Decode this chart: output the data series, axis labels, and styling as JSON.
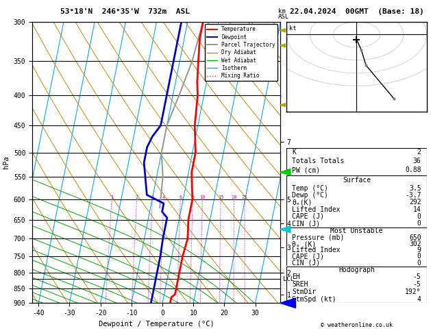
{
  "title_left": "53°18'N  246°35'W  732m  ASL",
  "title_right": "22.04.2024  00GMT  (Base: 18)",
  "xlabel": "Dewpoint / Temperature (°C)",
  "xlim": [
    -42,
    38
  ],
  "pressure_levels": [
    300,
    350,
    400,
    450,
    500,
    550,
    600,
    650,
    700,
    750,
    800,
    850,
    900
  ],
  "temp_profile": {
    "T": [
      -5,
      -5,
      -4,
      -3,
      -2,
      -1,
      1,
      1,
      2,
      3,
      3,
      4,
      3.5,
      3.5,
      3.5,
      3.5,
      2.5,
      2.5
    ],
    "p": [
      300,
      320,
      350,
      380,
      400,
      450,
      500,
      540,
      570,
      600,
      650,
      700,
      750,
      800,
      850,
      870,
      880,
      900
    ]
  },
  "dewp_profile": {
    "T": [
      -12,
      -12,
      -12,
      -12,
      -14,
      -15,
      -15,
      -12,
      -6,
      -6,
      -4,
      -4,
      -3.7,
      -3.7,
      -3.7,
      -3.7
    ],
    "p": [
      300,
      350,
      400,
      450,
      470,
      490,
      520,
      590,
      610,
      630,
      645,
      700,
      750,
      800,
      850,
      900
    ]
  },
  "parcel_profile": {
    "T": [
      -5,
      -6,
      -8,
      -10,
      -10,
      -8,
      -7
    ],
    "p": [
      300,
      350,
      400,
      450,
      500,
      550,
      620
    ]
  },
  "lcl_p": 820,
  "km_ticks": [
    {
      "km": 1,
      "p": 870
    },
    {
      "km": 2,
      "p": 800
    },
    {
      "km": 3,
      "p": 725
    },
    {
      "km": 4,
      "p": 660
    },
    {
      "km": 5,
      "p": 600
    },
    {
      "km": 6,
      "p": 540
    },
    {
      "km": 7,
      "p": 480
    }
  ],
  "mixing_ratio_values": [
    1,
    2,
    3,
    4,
    6,
    8,
    10,
    15,
    20,
    25
  ],
  "info_box": {
    "K": 2,
    "Totals_Totals": 36,
    "PW_cm": 0.88,
    "surface_temp": 3.5,
    "surface_dewp": -3.7,
    "surface_theta_e": 292,
    "surface_lifted_index": 14,
    "surface_CAPE": 0,
    "surface_CIN": 0,
    "mu_pressure": 650,
    "mu_theta_e": 302,
    "mu_lifted_index": 9,
    "mu_CAPE": 0,
    "mu_CIN": 0,
    "EH": -5,
    "SREH": -5,
    "StmDir": 192,
    "StmSpd_kt": 4
  },
  "colors": {
    "temp": "#ff0000",
    "dewp": "#0000cc",
    "parcel": "#999999",
    "dry_adiabat": "#cc8800",
    "wet_adiabat": "#00aa00",
    "isotherm": "#00aaff",
    "mixing_ratio": "#cc00cc",
    "background": "#ffffff"
  },
  "wind_barbs": [
    {
      "p": 300,
      "u": 8,
      "v": -25,
      "color": "#0000ff"
    },
    {
      "p": 400,
      "u": 2,
      "v": -12,
      "color": "#00cccc"
    },
    {
      "p": 500,
      "u": 1,
      "v": -6,
      "color": "#00cc00"
    },
    {
      "p": 650,
      "u": 0,
      "v": -2,
      "color": "#aaaa00"
    },
    {
      "p": 820,
      "u": 0,
      "v": -2,
      "color": "#aaaa00"
    },
    {
      "p": 870,
      "u": 0,
      "v": -2,
      "color": "#aaaa00"
    }
  ],
  "hodo_winds": [
    {
      "u": 8,
      "v": -25
    },
    {
      "u": 2,
      "v": -12
    },
    {
      "u": 1,
      "v": -6
    },
    {
      "u": 0,
      "v": -2
    }
  ]
}
